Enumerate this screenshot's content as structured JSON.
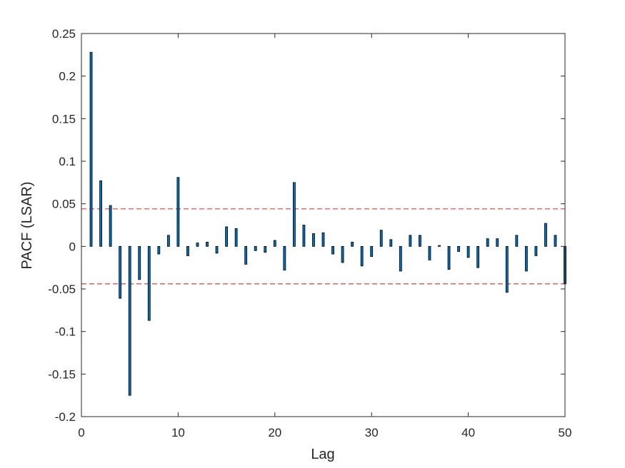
{
  "chart_data": {
    "type": "bar",
    "xlabel": "Lag",
    "ylabel": "PACF (LSAR)",
    "xlim": [
      0,
      50
    ],
    "ylim": [
      -0.2,
      0.25
    ],
    "x_ticks": [
      0,
      10,
      20,
      30,
      40,
      50
    ],
    "x_tick_labels": [
      "0",
      "10",
      "20",
      "30",
      "40",
      "50"
    ],
    "y_ticks": [
      -0.2,
      -0.15,
      -0.1,
      -0.05,
      0,
      0.05,
      0.1,
      0.15,
      0.2,
      0.25
    ],
    "y_tick_labels": [
      "-0.2",
      "-0.15",
      "-0.1",
      "-0.05",
      "0",
      "0.05",
      "0.1",
      "0.15",
      "0.2",
      "0.25"
    ],
    "grid": false,
    "bar_color": "#0072BD",
    "bar_edge_color": "#000000",
    "confidence_bounds": [
      0.044,
      -0.044
    ],
    "bound_color": "#EE3B3B",
    "lags": [
      1,
      2,
      3,
      4,
      5,
      6,
      7,
      8,
      9,
      10,
      11,
      12,
      13,
      14,
      15,
      16,
      17,
      18,
      19,
      20,
      21,
      22,
      23,
      24,
      25,
      26,
      27,
      28,
      29,
      30,
      31,
      32,
      33,
      34,
      35,
      36,
      37,
      38,
      39,
      40,
      41,
      42,
      43,
      44,
      45,
      46,
      47,
      48,
      49,
      50
    ],
    "values": [
      0.228,
      0.077,
      0.048,
      -0.061,
      -0.175,
      -0.039,
      -0.087,
      -0.009,
      0.013,
      0.081,
      -0.011,
      0.004,
      0.005,
      -0.008,
      0.023,
      0.021,
      -0.021,
      -0.005,
      -0.007,
      0.007,
      -0.028,
      0.075,
      0.025,
      0.015,
      0.016,
      -0.009,
      -0.019,
      0.005,
      -0.023,
      -0.012,
      0.019,
      0.008,
      -0.029,
      0.013,
      0.013,
      -0.016,
      0.001,
      -0.027,
      -0.006,
      -0.013,
      -0.025,
      0.009,
      0.009,
      -0.054,
      0.013,
      -0.029,
      -0.011,
      0.027,
      0.013,
      -0.044
    ]
  }
}
